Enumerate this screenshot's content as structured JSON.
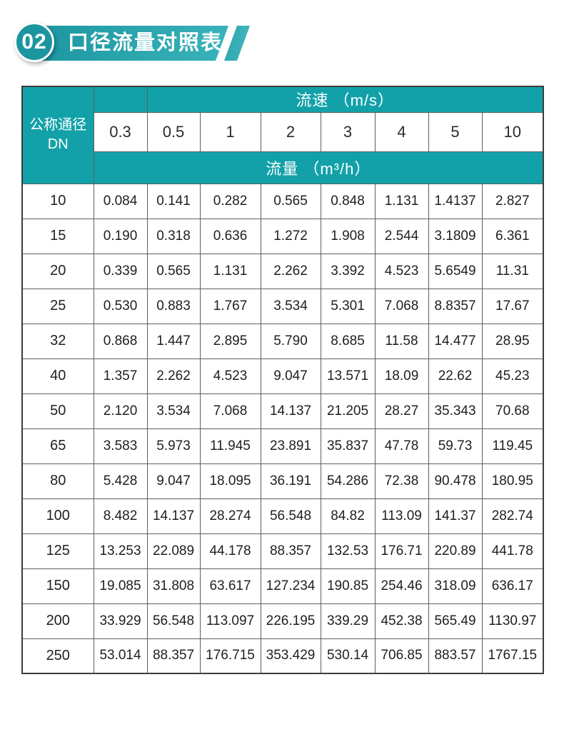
{
  "theme": {
    "accent": "#12a1a9",
    "accent_dark": "#1b96a0",
    "accent_light": "#3ab3bb",
    "grid_line": "#5f5f5f",
    "text": "#1f1f1f"
  },
  "header": {
    "badge": "02",
    "title": "口径流量对照表"
  },
  "table": {
    "corner_line1": "公称通径",
    "corner_line2": "DN",
    "velocity_header": "流速 （m/s）",
    "flow_header": "流量 （m³/h）",
    "velocities": [
      "0.3",
      "0.5",
      "1",
      "2",
      "3",
      "4",
      "5",
      "10"
    ],
    "rows": [
      {
        "dn": "10",
        "values": [
          "0.084",
          "0.141",
          "0.282",
          "0.565",
          "0.848",
          "1.131",
          "1.4137",
          "2.827"
        ]
      },
      {
        "dn": "15",
        "values": [
          "0.190",
          "0.318",
          "0.636",
          "1.272",
          "1.908",
          "2.544",
          "3.1809",
          "6.361"
        ]
      },
      {
        "dn": "20",
        "values": [
          "0.339",
          "0.565",
          "1.131",
          "2.262",
          "3.392",
          "4.523",
          "5.6549",
          "11.31"
        ]
      },
      {
        "dn": "25",
        "values": [
          "0.530",
          "0.883",
          "1.767",
          "3.534",
          "5.301",
          "7.068",
          "8.8357",
          "17.67"
        ]
      },
      {
        "dn": "32",
        "values": [
          "0.868",
          "1.447",
          "2.895",
          "5.790",
          "8.685",
          "11.58",
          "14.477",
          "28.95"
        ]
      },
      {
        "dn": "40",
        "values": [
          "1.357",
          "2.262",
          "4.523",
          "9.047",
          "13.571",
          "18.09",
          "22.62",
          "45.23"
        ]
      },
      {
        "dn": "50",
        "values": [
          "2.120",
          "3.534",
          "7.068",
          "14.137",
          "21.205",
          "28.27",
          "35.343",
          "70.68"
        ]
      },
      {
        "dn": "65",
        "values": [
          "3.583",
          "5.973",
          "11.945",
          "23.891",
          "35.837",
          "47.78",
          "59.73",
          "119.45"
        ]
      },
      {
        "dn": "80",
        "values": [
          "5.428",
          "9.047",
          "18.095",
          "36.191",
          "54.286",
          "72.38",
          "90.478",
          "180.95"
        ]
      },
      {
        "dn": "100",
        "values": [
          "8.482",
          "14.137",
          "28.274",
          "56.548",
          "84.82",
          "113.09",
          "141.37",
          "282.74"
        ]
      },
      {
        "dn": "125",
        "values": [
          "13.253",
          "22.089",
          "44.178",
          "88.357",
          "132.53",
          "176.71",
          "220.89",
          "441.78"
        ]
      },
      {
        "dn": "150",
        "values": [
          "19.085",
          "31.808",
          "63.617",
          "127.234",
          "190.85",
          "254.46",
          "318.09",
          "636.17"
        ]
      },
      {
        "dn": "200",
        "values": [
          "33.929",
          "56.548",
          "113.097",
          "226.195",
          "339.29",
          "452.38",
          "565.49",
          "1130.97"
        ]
      },
      {
        "dn": "250",
        "values": [
          "53.014",
          "88.357",
          "176.715",
          "353.429",
          "530.14",
          "706.85",
          "883.57",
          "1767.15"
        ]
      }
    ]
  }
}
